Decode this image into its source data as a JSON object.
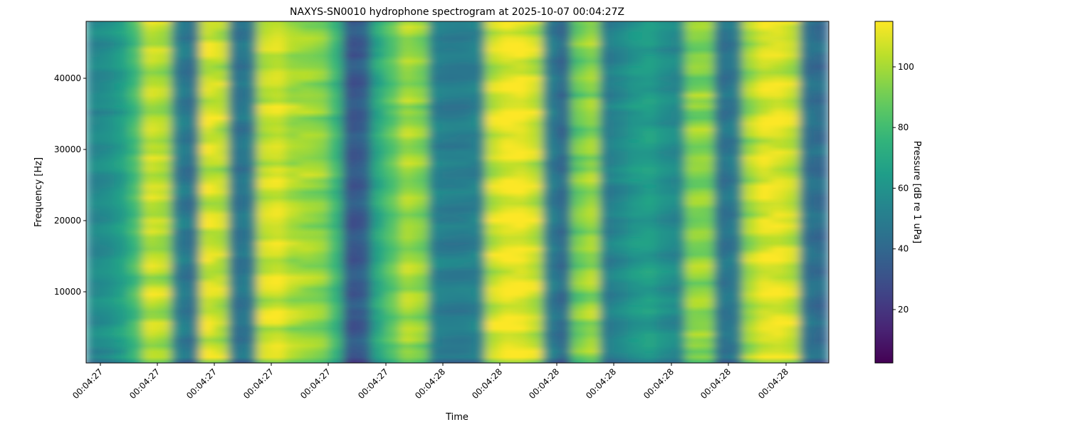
{
  "chart_data": {
    "type": "heatmap",
    "title": "NAXYS-SN0010 hydrophone spectrogram at 2025-10-07 00:04:27Z",
    "xlabel": "Time",
    "ylabel": "Frequency [Hz]",
    "x_tick_labels": [
      "00:04:27",
      "00:04:27",
      "00:04:27",
      "00:04:27",
      "00:04:27",
      "00:04:27",
      "00:04:28",
      "00:04:28",
      "00:04:28",
      "00:04:28",
      "00:04:28",
      "00:04:28",
      "00:04:28"
    ],
    "y_ticks": [
      10000,
      20000,
      30000,
      40000
    ],
    "ylim": [
      0,
      48000
    ],
    "colorbar": {
      "label": "Pressure [dB re 1 uPa]",
      "ticks": [
        20,
        40,
        60,
        80,
        100
      ],
      "range": [
        2.4,
        115
      ],
      "colormap": "viridis"
    },
    "column_mean_db": [
      55,
      58,
      65,
      80,
      105,
      102,
      50,
      45,
      108,
      104,
      45,
      48,
      105,
      108,
      100,
      98,
      95,
      78,
      32,
      35,
      70,
      85,
      100,
      95,
      52,
      50,
      50,
      52,
      105,
      112,
      112,
      105,
      50,
      40,
      90,
      98,
      50,
      55,
      62,
      65,
      58,
      55,
      95,
      95,
      45,
      48,
      100,
      110,
      110,
      105,
      45,
      42
    ]
  }
}
